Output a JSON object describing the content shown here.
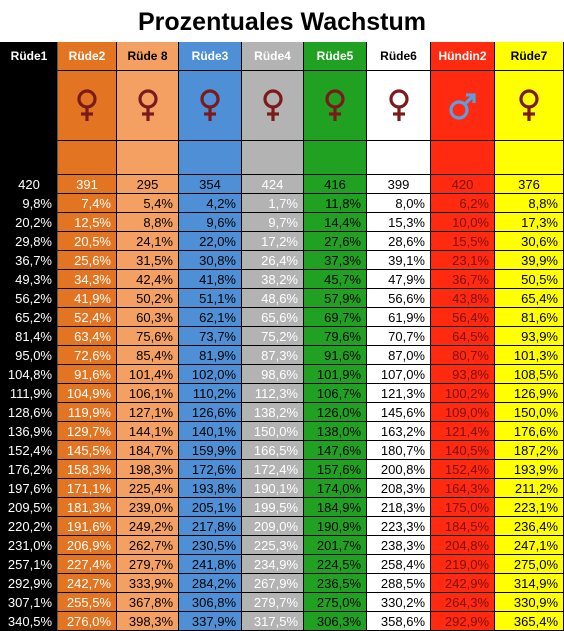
{
  "title": "Prozentuales Wachstum",
  "columns": [
    {
      "name": "Rüde1",
      "color": "#000000",
      "text": "#ffffff",
      "symbol": "",
      "symbol_color": ""
    },
    {
      "name": "Rüde2",
      "color": "#e37522",
      "text": "#ffffff",
      "symbol": "female-icon",
      "symbol_color": "#7a1a1a"
    },
    {
      "name": "Rüde 8",
      "color": "#f4a062",
      "text": "#000000",
      "symbol": "female-icon",
      "symbol_color": "#7a1a1a"
    },
    {
      "name": "Rüde3",
      "color": "#4e8fd6",
      "text": "#000000",
      "symbol": "female-icon",
      "symbol_color": "#7a1a1a"
    },
    {
      "name": "Rüde4",
      "color": "#b3b3b3",
      "text": "#ffffff",
      "symbol": "female-icon",
      "symbol_color": "#7a1a1a"
    },
    {
      "name": "Rüde5",
      "color": "#21a121",
      "text": "#000000",
      "symbol": "female-icon",
      "symbol_color": "#7a1a1a"
    },
    {
      "name": "Rüde6",
      "color": "#ffffff",
      "text": "#000000",
      "symbol": "female-icon",
      "symbol_color": "#7a1a1a"
    },
    {
      "name": "Hündin2",
      "color": "#ff2a10",
      "text": "#7a1010",
      "symbol": "male-icon",
      "symbol_color": "#5aa0e0"
    },
    {
      "name": "Rüde7",
      "color": "#ffff00",
      "text": "#000000",
      "symbol": "female-icon",
      "symbol_color": "#7a1a1a"
    }
  ],
  "header_text_colors": [
    "#ffffff",
    "#ffffff",
    "#000000",
    "#ffffff",
    "#ffffff",
    "#ffffff",
    "#000000",
    "#ffffff",
    "#000000"
  ],
  "base_values": [
    "420",
    "391",
    "295",
    "354",
    "424",
    "416",
    "399",
    "420",
    "376"
  ],
  "rows": [
    [
      "9,8%",
      "7,4%",
      "5,4%",
      "4,2%",
      "1,7%",
      "11,8%",
      "8,0%",
      "6,2%",
      "8,8%"
    ],
    [
      "20,2%",
      "12,5%",
      "8,8%",
      "9,6%",
      "9,7%",
      "14,4%",
      "15,3%",
      "10,0%",
      "17,3%"
    ],
    [
      "29,8%",
      "20,5%",
      "24,1%",
      "22,0%",
      "17,2%",
      "27,6%",
      "28,6%",
      "15,5%",
      "30,6%"
    ],
    [
      "36,7%",
      "25,6%",
      "31,5%",
      "30,8%",
      "26,4%",
      "37,3%",
      "39,1%",
      "23,1%",
      "39,9%"
    ],
    [
      "49,3%",
      "34,3%",
      "42,4%",
      "41,8%",
      "38,2%",
      "45,7%",
      "47,9%",
      "36,7%",
      "50,5%"
    ],
    [
      "56,2%",
      "41,9%",
      "50,2%",
      "51,1%",
      "48,6%",
      "57,9%",
      "56,6%",
      "43,8%",
      "65,4%"
    ],
    [
      "65,2%",
      "52,4%",
      "60,3%",
      "62,1%",
      "65,6%",
      "69,7%",
      "61,9%",
      "56,4%",
      "81,6%"
    ],
    [
      "81,4%",
      "63,4%",
      "75,6%",
      "73,7%",
      "75,2%",
      "79,6%",
      "70,7%",
      "64,5%",
      "93,9%"
    ],
    [
      "95,0%",
      "72,6%",
      "85,4%",
      "81,9%",
      "87,3%",
      "91,6%",
      "87,0%",
      "80,7%",
      "101,3%"
    ],
    [
      "104,8%",
      "91,6%",
      "101,4%",
      "102,0%",
      "98,6%",
      "101,9%",
      "107,0%",
      "93,8%",
      "108,5%"
    ],
    [
      "111,9%",
      "104,9%",
      "106,1%",
      "110,2%",
      "112,3%",
      "106,7%",
      "121,3%",
      "100,2%",
      "126,9%"
    ],
    [
      "128,6%",
      "119,9%",
      "127,1%",
      "126,6%",
      "138,2%",
      "126,0%",
      "145,6%",
      "109,0%",
      "150,0%"
    ],
    [
      "136,9%",
      "129,7%",
      "144,1%",
      "140,1%",
      "150,0%",
      "138,0%",
      "163,2%",
      "121,4%",
      "176,6%"
    ],
    [
      "152,4%",
      "145,5%",
      "184,7%",
      "159,9%",
      "166,5%",
      "147,6%",
      "180,7%",
      "140,5%",
      "187,2%"
    ],
    [
      "176,2%",
      "158,3%",
      "198,3%",
      "172,6%",
      "172,4%",
      "157,6%",
      "200,8%",
      "152,4%",
      "193,9%"
    ],
    [
      "197,6%",
      "171,1%",
      "225,4%",
      "193,8%",
      "190,1%",
      "174,0%",
      "208,3%",
      "164,3%",
      "211,2%"
    ],
    [
      "209,5%",
      "181,3%",
      "239,0%",
      "205,1%",
      "199,5%",
      "184,9%",
      "218,3%",
      "175,0%",
      "223,1%"
    ],
    [
      "220,2%",
      "191,6%",
      "249,2%",
      "217,8%",
      "209,0%",
      "190,9%",
      "223,3%",
      "184,5%",
      "236,4%"
    ],
    [
      "231,0%",
      "206,9%",
      "262,7%",
      "230,5%",
      "225,3%",
      "201,7%",
      "238,3%",
      "204,8%",
      "247,1%"
    ],
    [
      "257,1%",
      "227,4%",
      "279,7%",
      "241,8%",
      "234,9%",
      "224,5%",
      "258,4%",
      "219,0%",
      "275,0%"
    ],
    [
      "292,9%",
      "242,7%",
      "333,9%",
      "284,2%",
      "267,9%",
      "236,5%",
      "288,5%",
      "242,9%",
      "314,9%"
    ],
    [
      "307,1%",
      "255,5%",
      "367,8%",
      "306,8%",
      "279,7%",
      "275,0%",
      "330,2%",
      "264,3%",
      "330,9%"
    ],
    [
      "340,5%",
      "276,0%",
      "398,3%",
      "337,9%",
      "317,5%",
      "306,3%",
      "358,6%",
      "292,9%",
      "365,4%"
    ]
  ]
}
